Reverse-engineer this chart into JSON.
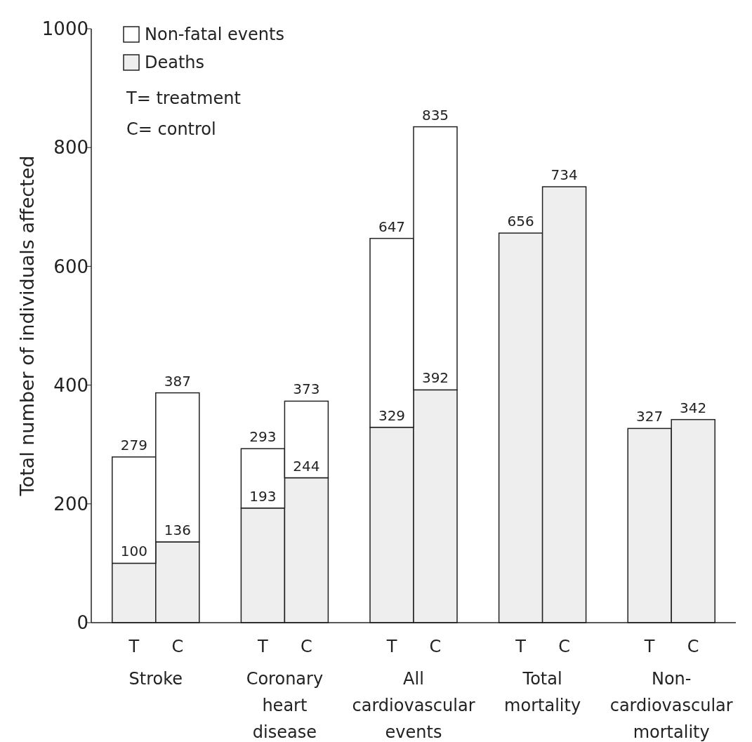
{
  "chart_data": {
    "type": "bar",
    "stacked": true,
    "ylabel": "Total number of individuals affected",
    "categories": [
      "T",
      "C",
      "T",
      "C",
      "T",
      "C",
      "T",
      "C",
      "T",
      "C"
    ],
    "series": [
      {
        "name": "Deaths",
        "color": "#eeeeee",
        "values": [
          100,
          136,
          193,
          244,
          329,
          392,
          656,
          734,
          327,
          342
        ],
        "value_labels": [
          "100",
          "136",
          "193",
          "244",
          "329",
          "392",
          "656",
          "734",
          "327",
          "342"
        ]
      },
      {
        "name": "Non-fatal events",
        "color": "#ffffff",
        "values": [
          179,
          251,
          100,
          129,
          318,
          443,
          null,
          null,
          null,
          null
        ]
      }
    ],
    "totals": [
      "279",
      "387",
      "293",
      "373",
      "647",
      "835",
      null,
      null,
      null,
      null
    ],
    "ylim": [
      0,
      1000
    ],
    "yticks": [
      0,
      200,
      400,
      600,
      800,
      1000
    ],
    "grid": false,
    "legend": "top left",
    "annotations": [
      "T= treatment",
      "C= control",
      "Stroke",
      "Coronary\nheart\ndisease",
      "All\ncardiovascular\nevents",
      "Total\nmortality",
      "Non-\ncardiovascular\nmortality"
    ]
  }
}
